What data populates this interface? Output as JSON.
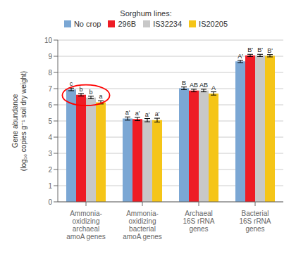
{
  "chart_data": {
    "type": "bar",
    "categories": [
      "Ammonia-\noxidizing\narchaeal\namoA genes",
      "Ammonia-\noxidizing\nbacterial\namoA genes",
      "Archaeal\n16S rRNA\ngenes",
      "Bacterial\n16S rRNA\ngenes"
    ],
    "series": [
      {
        "name": "No crop",
        "color": "#7ba7d4",
        "values": [
          6.95,
          5.15,
          7.02,
          8.68
        ],
        "errors": [
          0.08,
          0.1,
          0.08,
          0.07
        ],
        "annotations": [
          "c",
          "a'",
          "B",
          "A'"
        ]
      },
      {
        "name": "296B",
        "color": "#ee1c25",
        "values": [
          6.62,
          5.12,
          6.88,
          9.05
        ],
        "errors": [
          0.08,
          0.1,
          0.08,
          0.07
        ],
        "annotations": [
          "b",
          "a'",
          "AB",
          "B'"
        ]
      },
      {
        "name": "IS32234",
        "color": "#c8c8c8",
        "values": [
          6.45,
          5.05,
          6.88,
          9.05
        ],
        "errors": [
          0.08,
          0.1,
          0.08,
          0.07
        ],
        "annotations": [
          "b",
          "a'",
          "AB",
          "B'"
        ]
      },
      {
        "name": "IS20205",
        "color": "#f5c518",
        "values": [
          6.15,
          5.05,
          6.7,
          9.03
        ],
        "errors": [
          0.1,
          0.12,
          0.1,
          0.07
        ],
        "annotations": [
          "a",
          "a'",
          "A",
          "B'"
        ]
      }
    ],
    "y_label": "Gene abundance\n(log₁₀ copies g⁻¹ soil dry weight)",
    "ylim": [
      0,
      10
    ],
    "yticks": [
      0,
      1,
      2,
      3,
      4,
      5,
      6,
      7,
      8,
      9,
      10
    ],
    "grid": true,
    "legend": "top",
    "legend_title": "Sorghum lines:"
  }
}
